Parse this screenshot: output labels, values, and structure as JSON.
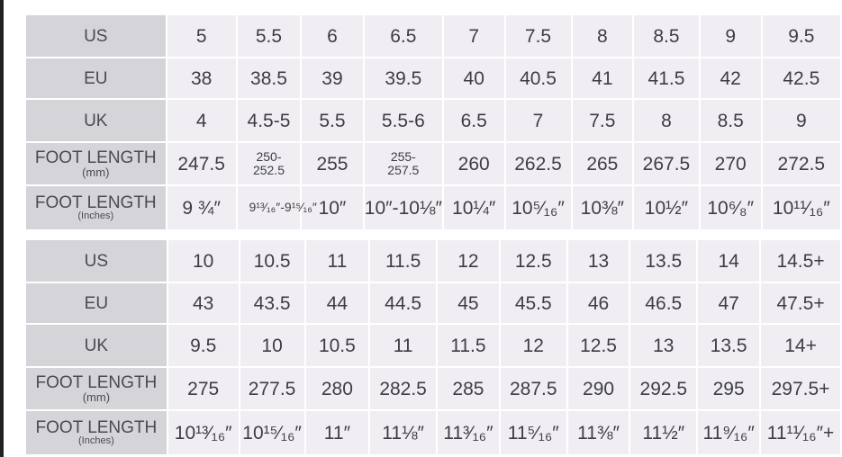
{
  "tables": [
    {
      "rows": [
        {
          "label": "US",
          "values": [
            "5",
            "5.5",
            "6",
            "6.5",
            "7",
            "7.5",
            "8",
            "8.5",
            "9",
            "9.5"
          ]
        },
        {
          "label": "EU",
          "values": [
            "38",
            "38.5",
            "39",
            "39.5",
            "40",
            "40.5",
            "41",
            "41.5",
            "42",
            "42.5"
          ]
        },
        {
          "label": "UK",
          "values": [
            "4",
            "4.5-5",
            "5.5",
            "5.5-6",
            "6.5",
            "7",
            "7.5",
            "8",
            "8.5",
            "9"
          ]
        },
        {
          "label": "FOOT LENGTH",
          "sublabel": "(mm)",
          "values": [
            "247.5",
            "250-252.5",
            "255",
            "255-257.5",
            "260",
            "262.5",
            "265",
            "267.5",
            "270",
            "272.5"
          ]
        },
        {
          "label": "FOOT LENGTH",
          "sublabel": "(Inches)",
          "values": [
            "9 ¾″",
            "9¹³⁄₁₆″-9¹⁵⁄₁₆″",
            "10″",
            "10″-10⅛″",
            "10¼″",
            "10⁵⁄₁₆″",
            "10⅜″",
            "10½″",
            "10⁶⁄₈″",
            "10¹¹⁄₁₆″"
          ]
        }
      ]
    },
    {
      "rows": [
        {
          "label": "US",
          "values": [
            "10",
            "10.5",
            "11",
            "11.5",
            "12",
            "12.5",
            "13",
            "13.5",
            "14",
            "14.5+"
          ]
        },
        {
          "label": "EU",
          "values": [
            "43",
            "43.5",
            "44",
            "44.5",
            "45",
            "45.5",
            "46",
            "46.5",
            "47",
            "47.5+"
          ]
        },
        {
          "label": "UK",
          "values": [
            "9.5",
            "10",
            "10.5",
            "11",
            "11.5",
            "12",
            "12.5",
            "13",
            "13.5",
            "14+"
          ]
        },
        {
          "label": "FOOT LENGTH",
          "sublabel": "(mm)",
          "values": [
            "275",
            "277.5",
            "280",
            "282.5",
            "285",
            "287.5",
            "290",
            "292.5",
            "295",
            "297.5+"
          ]
        },
        {
          "label": "FOOT LENGTH",
          "sublabel": "(Inches)",
          "values": [
            "10¹³⁄₁₆″",
            "10¹⁵⁄₁₆″",
            "11″",
            "11⅛″",
            "11³⁄₁₆″",
            "11⁵⁄₁₆″",
            "11⅜″",
            "11½″",
            "11⁹⁄₁₆″",
            "11¹¹⁄₁₆″+"
          ]
        }
      ]
    }
  ],
  "colors": {
    "label_bg": "#d5d4d9",
    "value_bg": "#f0eef3",
    "text": "#3e3e42"
  }
}
